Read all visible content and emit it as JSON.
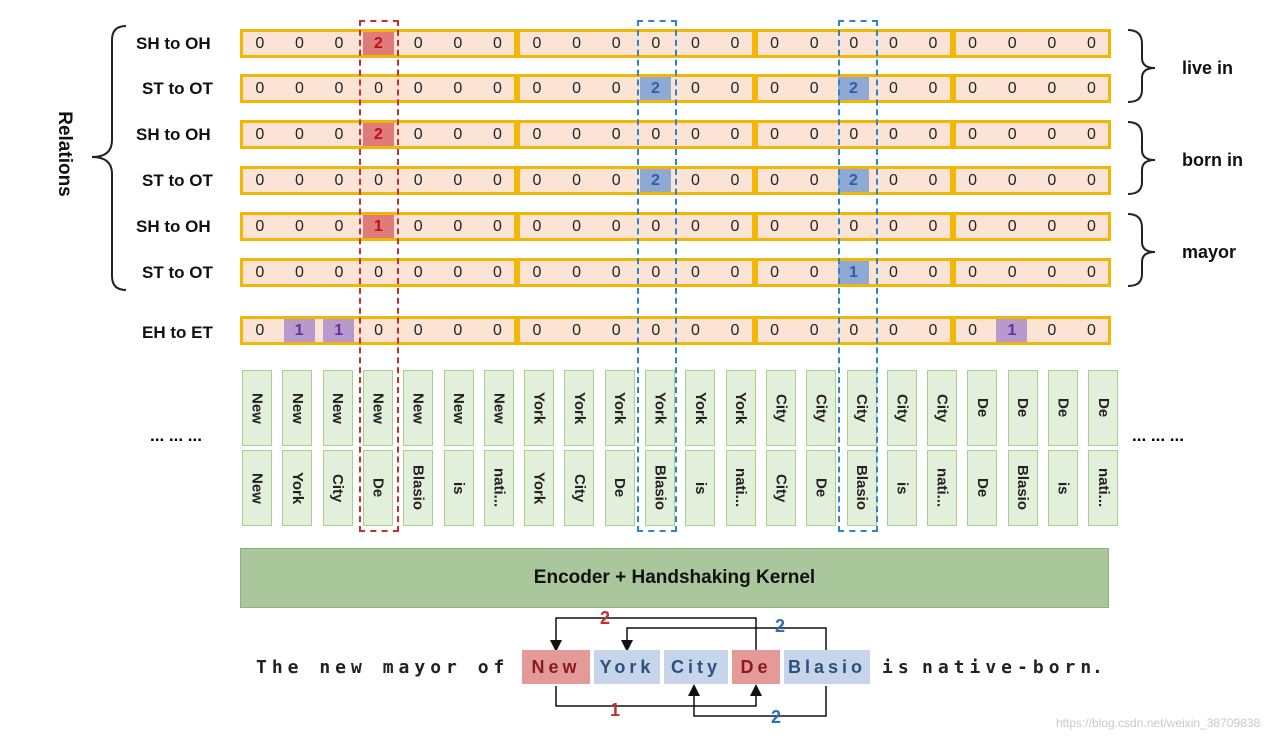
{
  "relations_label": "Relations",
  "row_labels": [
    "SH to OH",
    "ST to OT",
    "SH to OH",
    "ST to OT",
    "SH to OH",
    "ST to OT",
    "EH to ET"
  ],
  "relation_groups": [
    "live in",
    "born in",
    "mayor"
  ],
  "rows": [
    {
      "values": [
        0,
        0,
        0,
        2,
        0,
        0,
        0,
        0,
        0,
        0,
        0,
        0,
        0,
        0,
        0,
        0,
        0,
        0,
        0,
        0,
        0,
        0
      ],
      "highlights": [
        {
          "i": 3,
          "color": "red"
        }
      ]
    },
    {
      "values": [
        0,
        0,
        0,
        0,
        0,
        0,
        0,
        0,
        0,
        0,
        2,
        0,
        0,
        0,
        0,
        2,
        0,
        0,
        0,
        0,
        0,
        0
      ],
      "highlights": [
        {
          "i": 10,
          "color": "blue"
        },
        {
          "i": 15,
          "color": "blue"
        }
      ]
    },
    {
      "values": [
        0,
        0,
        0,
        2,
        0,
        0,
        0,
        0,
        0,
        0,
        0,
        0,
        0,
        0,
        0,
        0,
        0,
        0,
        0,
        0,
        0,
        0
      ],
      "highlights": [
        {
          "i": 3,
          "color": "red"
        }
      ]
    },
    {
      "values": [
        0,
        0,
        0,
        0,
        0,
        0,
        0,
        0,
        0,
        0,
        2,
        0,
        0,
        0,
        0,
        2,
        0,
        0,
        0,
        0,
        0,
        0
      ],
      "highlights": [
        {
          "i": 10,
          "color": "blue"
        },
        {
          "i": 15,
          "color": "blue"
        }
      ]
    },
    {
      "values": [
        0,
        0,
        0,
        1,
        0,
        0,
        0,
        0,
        0,
        0,
        0,
        0,
        0,
        0,
        0,
        0,
        0,
        0,
        0,
        0,
        0,
        0
      ],
      "highlights": [
        {
          "i": 3,
          "color": "red"
        }
      ]
    },
    {
      "values": [
        0,
        0,
        0,
        0,
        0,
        0,
        0,
        0,
        0,
        0,
        0,
        0,
        0,
        0,
        0,
        1,
        0,
        0,
        0,
        0,
        0,
        0
      ],
      "highlights": [
        {
          "i": 15,
          "color": "blue"
        }
      ]
    },
    {
      "values": [
        0,
        1,
        1,
        0,
        0,
        0,
        0,
        0,
        0,
        0,
        0,
        0,
        0,
        0,
        0,
        0,
        0,
        0,
        0,
        1,
        0,
        0
      ],
      "highlights": [
        {
          "i": 1,
          "color": "purple"
        },
        {
          "i": 2,
          "color": "purple"
        },
        {
          "i": 19,
          "color": "purple"
        }
      ]
    }
  ],
  "token_pairs": [
    [
      "New",
      "New"
    ],
    [
      "New",
      "York"
    ],
    [
      "New",
      "City"
    ],
    [
      "New",
      "De"
    ],
    [
      "New",
      "Blasio"
    ],
    [
      "New",
      "is"
    ],
    [
      "New",
      "nati..."
    ],
    [
      "York",
      "York"
    ],
    [
      "York",
      "City"
    ],
    [
      "York",
      "De"
    ],
    [
      "York",
      "Blasio"
    ],
    [
      "York",
      "is"
    ],
    [
      "York",
      "nati..."
    ],
    [
      "City",
      "City"
    ],
    [
      "City",
      "De"
    ],
    [
      "City",
      "Blasio"
    ],
    [
      "City",
      "is"
    ],
    [
      "City",
      "nati..."
    ],
    [
      "De",
      "De"
    ],
    [
      "De",
      "Blasio"
    ],
    [
      "De",
      "is"
    ],
    [
      "De",
      "nati..."
    ]
  ],
  "ellipsis_left": "... ... ...",
  "ellipsis_right": "... ... ...",
  "encoder_label": "Encoder + Handshaking Kernel",
  "sentence": {
    "prefix": "The new mayor of",
    "words": [
      "New",
      "York",
      "City",
      "De",
      "Blasio"
    ],
    "suffix_is": "is",
    "suffix_rest": "native-born",
    "period": "."
  },
  "arrow_numbers": [
    "2",
    "2",
    "1",
    "2"
  ],
  "watermark": "https://blog.csdn.net/weixin_38709838",
  "colors": {
    "red": "#e07b7b",
    "blue": "#8fa9d2",
    "purple": "#b79acb",
    "green": "#a9c79a",
    "orange": "#f2b705",
    "cell": "#fbe4d6"
  }
}
